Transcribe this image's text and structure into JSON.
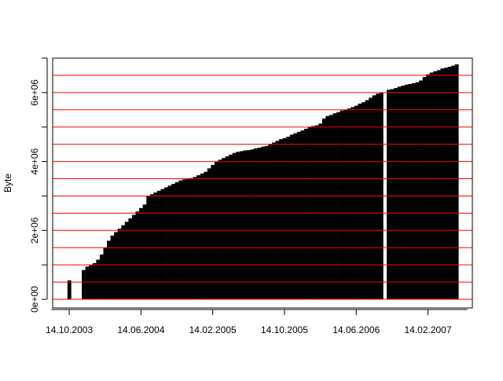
{
  "chart_data": {
    "type": "bar",
    "y_label": "Byte",
    "color": "#000000",
    "categories": [
      null,
      null,
      null,
      null,
      null,
      "14.10.2003",
      null,
      null,
      null,
      null,
      null,
      null,
      null,
      null,
      null,
      null,
      null,
      null,
      null,
      null,
      null,
      null,
      null,
      null,
      null,
      "14.06.2004",
      null,
      null,
      null,
      null,
      null,
      null,
      null,
      null,
      null,
      null,
      null,
      null,
      null,
      null,
      null,
      null,
      null,
      null,
      null,
      "14.02.2005",
      null,
      null,
      null,
      null,
      null,
      null,
      null,
      null,
      null,
      null,
      null,
      null,
      null,
      null,
      null,
      null,
      null,
      null,
      null,
      "14.10.2005",
      null,
      null,
      null,
      null,
      null,
      null,
      null,
      null,
      null,
      null,
      null,
      null,
      null,
      null,
      null,
      null,
      null,
      null,
      null,
      "14.06.2006",
      null,
      null,
      null,
      null,
      null,
      null,
      null,
      null,
      null,
      null,
      null,
      null,
      null,
      null,
      null,
      null,
      null,
      null,
      null,
      "14.02.2007",
      null,
      null,
      null,
      null,
      null,
      null,
      null,
      null,
      null,
      null,
      null
    ],
    "values": [
      null,
      null,
      null,
      null,
      null,
      550000,
      null,
      null,
      null,
      850000,
      950000,
      1000000,
      1050000,
      1150000,
      1300000,
      1500000,
      1700000,
      1850000,
      1950000,
      2050000,
      2150000,
      2250000,
      2350000,
      2450000,
      2550000,
      2650000,
      2750000,
      3000000,
      3050000,
      3100000,
      3150000,
      3200000,
      3250000,
      3300000,
      3350000,
      3400000,
      3450000,
      3480000,
      3500000,
      3520000,
      3550000,
      3600000,
      3650000,
      3700000,
      3800000,
      3900000,
      4000000,
      4050000,
      4100000,
      4150000,
      4200000,
      4250000,
      4280000,
      4300000,
      4320000,
      4330000,
      4350000,
      4380000,
      4400000,
      4430000,
      4450000,
      4500000,
      4550000,
      4600000,
      4650000,
      4680000,
      4720000,
      4780000,
      4820000,
      4860000,
      4900000,
      4950000,
      5000000,
      5030000,
      5050000,
      5100000,
      5250000,
      5320000,
      5350000,
      5400000,
      5430000,
      5480000,
      5500000,
      5540000,
      5580000,
      5620000,
      5680000,
      5720000,
      5780000,
      5850000,
      5920000,
      5970000,
      6000000,
      null,
      6080000,
      6100000,
      6130000,
      6170000,
      6200000,
      6230000,
      6250000,
      6270000,
      6300000,
      6350000,
      6450000,
      6530000,
      6580000,
      6620000,
      6650000,
      6700000,
      6720000,
      6750000,
      6780000,
      6820000,
      null,
      null,
      null
    ],
    "ylim": [
      -250000,
      7000000
    ],
    "yticks": [
      {
        "value": 0,
        "label": "0e+00"
      },
      {
        "value": 2000000,
        "label": "2e+06"
      },
      {
        "value": 4000000,
        "label": "4e+06"
      },
      {
        "value": 6000000,
        "label": "6e+06"
      }
    ],
    "yminor": [
      1000000,
      3000000,
      5000000,
      7000000
    ],
    "hlines": [
      0,
      500000,
      1000000,
      1500000,
      2000000,
      2500000,
      3000000,
      3500000,
      4000000,
      4500000,
      5000000,
      5500000,
      6000000,
      6500000
    ],
    "hline_color": "#ff0000"
  }
}
